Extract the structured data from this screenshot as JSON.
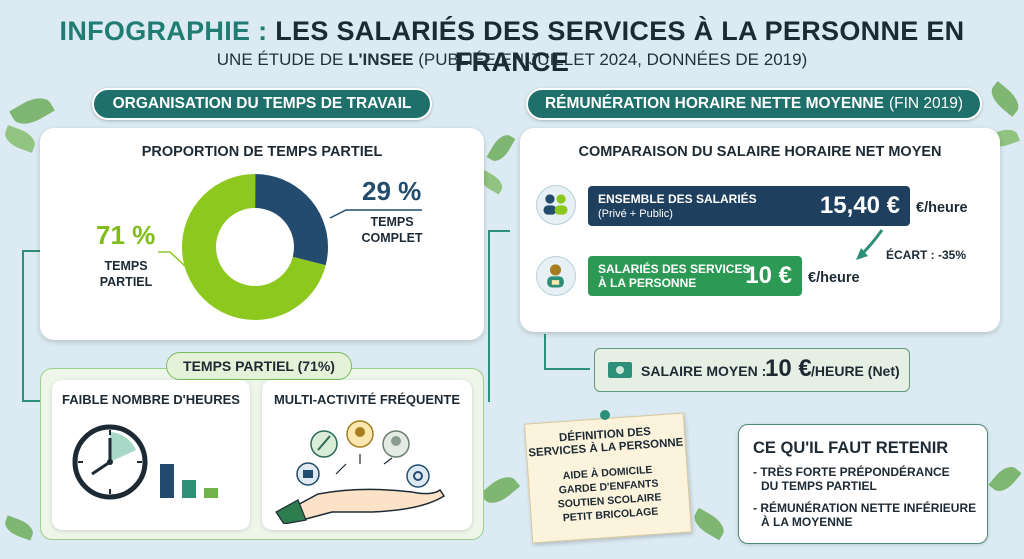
{
  "header": {
    "title_prefix": "INFOGRAPHIE :",
    "title_main": "LES SALARIÉS DES SERVICES À LA PERSONNE EN FRANCE",
    "subtitle_a": "UNE ÉTUDE DE",
    "subtitle_b": "L'INSEE",
    "subtitle_c": "(PUBLIÉE EN JUILLET 2024, DONNÉES DE 2019)"
  },
  "left_section": {
    "pill": "ORGANISATION DU TEMPS DE TRAVAIL",
    "card_title": "PROPORTION DE TEMPS PARTIEL",
    "partiel_pct": "71 %",
    "partiel_label_1": "TEMPS",
    "partiel_label_2": "PARTIEL",
    "complet_pct": "29 %",
    "complet_label_1": "TEMPS",
    "complet_label_2": "COMPLET",
    "partiel_share": 0.71,
    "complet_share": 0.29,
    "colors": {
      "partiel": "#8cc81e",
      "complet": "#224b6e"
    }
  },
  "temps_partiel": {
    "pill": "TEMPS PARTIEL (71%)",
    "card1_title": "FAIBLE NOMBRE D'HEURES",
    "card2_title": "MULTI-ACTIVITÉ FRÉQUENTE",
    "card1_icons": [
      "clock-icon",
      "bar-steps-icon"
    ],
    "card2_icons": [
      "cleaning-icon",
      "child-icon",
      "elderly-icon",
      "tutoring-icon",
      "open-hand-icon"
    ]
  },
  "right_section": {
    "pill": "RÉMUNÉRATION HORAIRE NETTE MOYENNE",
    "pill_suffix": "(FIN 2019)",
    "card_title": "COMPARAISON DU SALAIRE HORAIRE NET MOYEN",
    "row1_label": "ENSEMBLE DES SALARIÉS",
    "row1_sub": "(Privé + Public)",
    "row1_value": "15,40 €",
    "row1_unit": "€/heure",
    "ecart": "ÉCART : -35%",
    "row2_label_1": "SALARIÉS DES SERVICES",
    "row2_label_2": "À LA PERSONNE",
    "row2_value": "10 €",
    "row2_unit": "€/heure",
    "salaire_label": "SALAIRE MOYEN :",
    "salaire_value": "10 €",
    "salaire_unit": "/HEURE (Net)"
  },
  "definition": {
    "title_1": "DÉFINITION DES",
    "title_2": "SERVICES À  LA PERSONNE",
    "items": [
      "AIDE À DOMICILE",
      "GARDE D'ENFANTS",
      "SOUTIEN SCOLAIRE",
      "PETIT BRICOLAGE"
    ]
  },
  "retenir": {
    "title": "CE QU'IL FAUT RETENIR",
    "item1_1": "- TRÈS FORTE PRÉPONDÉRANCE",
    "item1_2": "DU TEMPS PARTIEL",
    "item2_1": "- RÉMUNÉRATION NETTE INFÉRIEURE",
    "item2_2": "À LA MOYENNE"
  }
}
